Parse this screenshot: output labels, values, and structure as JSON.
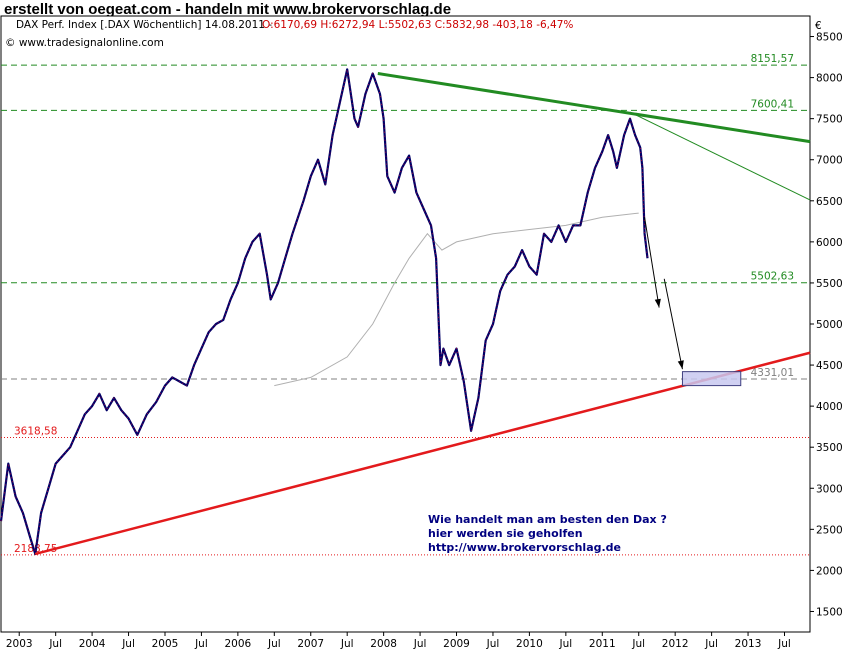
{
  "header": {
    "banner": "erstellt von oegeat.com - handeln mit www.brokervorschlag.de",
    "instrument": "DAX Perf. Index [.DAX  Wöchentlich]",
    "date": "14.08.2011",
    "ohlc": "O:6170,69 H:6272,94 L:5502,63 C:5832,98 -403,18 -6,47%",
    "credit": "© www.tradesignalonline.com",
    "currency": "€"
  },
  "annotation": {
    "line1": "Wie handelt man am besten  den Dax ?",
    "line2": "hier werden sie geholfen",
    "line3": "http://www.brokervorschlag.de"
  },
  "colors": {
    "price": "#000066",
    "down_candle": "#cc0033",
    "resistance": "#228b22",
    "support": "#e31a1c",
    "moving_average": "#b0b0b0",
    "target_box": "#c8c8f0"
  },
  "chart_data": {
    "type": "line",
    "x_unit": "year",
    "ylim": [
      1250,
      8750
    ],
    "xlim": [
      2002.75,
      2013.85
    ],
    "yticks": [
      1500,
      2000,
      2500,
      3000,
      3500,
      4000,
      4500,
      5000,
      5500,
      6000,
      6500,
      7000,
      7500,
      8000,
      8500
    ],
    "xticks": [
      {
        "x": 2003.0,
        "label": "2003"
      },
      {
        "x": 2003.5,
        "label": "Jul"
      },
      {
        "x": 2004.0,
        "label": "2004"
      },
      {
        "x": 2004.5,
        "label": "Jul"
      },
      {
        "x": 2005.0,
        "label": "2005"
      },
      {
        "x": 2005.5,
        "label": "Jul"
      },
      {
        "x": 2006.0,
        "label": "2006"
      },
      {
        "x": 2006.5,
        "label": "Jul"
      },
      {
        "x": 2007.0,
        "label": "2007"
      },
      {
        "x": 2007.5,
        "label": "Jul"
      },
      {
        "x": 2008.0,
        "label": "2008"
      },
      {
        "x": 2008.5,
        "label": "Jul"
      },
      {
        "x": 2009.0,
        "label": "2009"
      },
      {
        "x": 2009.5,
        "label": "Jul"
      },
      {
        "x": 2010.0,
        "label": "2010"
      },
      {
        "x": 2010.5,
        "label": "Jul"
      },
      {
        "x": 2011.0,
        "label": "2011"
      },
      {
        "x": 2011.5,
        "label": "Jul"
      },
      {
        "x": 2012.0,
        "label": "2012"
      },
      {
        "x": 2012.5,
        "label": "Jul"
      },
      {
        "x": 2013.0,
        "label": "2013"
      },
      {
        "x": 2013.5,
        "label": "Jul"
      }
    ],
    "grid": false,
    "series": [
      {
        "kind": "price",
        "points": [
          [
            2002.75,
            2600
          ],
          [
            2002.85,
            3300
          ],
          [
            2002.95,
            2900
          ],
          [
            2003.05,
            2700
          ],
          [
            2003.15,
            2400
          ],
          [
            2003.22,
            2200
          ],
          [
            2003.3,
            2700
          ],
          [
            2003.4,
            3000
          ],
          [
            2003.5,
            3300
          ],
          [
            2003.6,
            3400
          ],
          [
            2003.7,
            3500
          ],
          [
            2003.8,
            3700
          ],
          [
            2003.9,
            3900
          ],
          [
            2004.0,
            4000
          ],
          [
            2004.1,
            4150
          ],
          [
            2004.2,
            3950
          ],
          [
            2004.3,
            4100
          ],
          [
            2004.4,
            3950
          ],
          [
            2004.5,
            3850
          ],
          [
            2004.62,
            3650
          ],
          [
            2004.75,
            3900
          ],
          [
            2004.88,
            4050
          ],
          [
            2005.0,
            4250
          ],
          [
            2005.1,
            4350
          ],
          [
            2005.2,
            4300
          ],
          [
            2005.3,
            4250
          ],
          [
            2005.4,
            4500
          ],
          [
            2005.5,
            4700
          ],
          [
            2005.6,
            4900
          ],
          [
            2005.7,
            5000
          ],
          [
            2005.8,
            5050
          ],
          [
            2005.9,
            5300
          ],
          [
            2006.0,
            5500
          ],
          [
            2006.1,
            5800
          ],
          [
            2006.2,
            6000
          ],
          [
            2006.3,
            6100
          ],
          [
            2006.4,
            5600
          ],
          [
            2006.45,
            5300
          ],
          [
            2006.55,
            5500
          ],
          [
            2006.65,
            5800
          ],
          [
            2006.75,
            6100
          ],
          [
            2006.9,
            6500
          ],
          [
            2007.0,
            6800
          ],
          [
            2007.1,
            7000
          ],
          [
            2007.2,
            6700
          ],
          [
            2007.3,
            7300
          ],
          [
            2007.4,
            7700
          ],
          [
            2007.5,
            8100
          ],
          [
            2007.6,
            7500
          ],
          [
            2007.65,
            7400
          ],
          [
            2007.75,
            7800
          ],
          [
            2007.85,
            8050
          ],
          [
            2007.95,
            7800
          ],
          [
            2008.0,
            7500
          ],
          [
            2008.05,
            6800
          ],
          [
            2008.15,
            6600
          ],
          [
            2008.25,
            6900
          ],
          [
            2008.35,
            7050
          ],
          [
            2008.45,
            6600
          ],
          [
            2008.55,
            6400
          ],
          [
            2008.65,
            6200
          ],
          [
            2008.72,
            5800
          ],
          [
            2008.78,
            4500
          ],
          [
            2008.82,
            4700
          ],
          [
            2008.9,
            4500
          ],
          [
            2009.0,
            4700
          ],
          [
            2009.1,
            4300
          ],
          [
            2009.2,
            3700
          ],
          [
            2009.3,
            4100
          ],
          [
            2009.4,
            4800
          ],
          [
            2009.5,
            5000
          ],
          [
            2009.6,
            5400
          ],
          [
            2009.7,
            5600
          ],
          [
            2009.8,
            5700
          ],
          [
            2009.9,
            5900
          ],
          [
            2010.0,
            5700
          ],
          [
            2010.1,
            5600
          ],
          [
            2010.2,
            6100
          ],
          [
            2010.3,
            6000
          ],
          [
            2010.4,
            6200
          ],
          [
            2010.5,
            6000
          ],
          [
            2010.6,
            6200
          ],
          [
            2010.7,
            6200
          ],
          [
            2010.8,
            6600
          ],
          [
            2010.9,
            6900
          ],
          [
            2011.0,
            7100
          ],
          [
            2011.08,
            7300
          ],
          [
            2011.15,
            7100
          ],
          [
            2011.2,
            6900
          ],
          [
            2011.3,
            7300
          ],
          [
            2011.38,
            7500
          ],
          [
            2011.45,
            7300
          ],
          [
            2011.52,
            7150
          ],
          [
            2011.55,
            6900
          ],
          [
            2011.58,
            6100
          ],
          [
            2011.62,
            5800
          ]
        ]
      },
      {
        "kind": "moving_average",
        "points": [
          [
            2006.5,
            4250
          ],
          [
            2007.0,
            4350
          ],
          [
            2007.5,
            4600
          ],
          [
            2007.85,
            5000
          ],
          [
            2008.15,
            5500
          ],
          [
            2008.35,
            5800
          ],
          [
            2008.6,
            6100
          ],
          [
            2008.8,
            5900
          ],
          [
            2009.0,
            6000
          ],
          [
            2009.5,
            6100
          ],
          [
            2010.0,
            6150
          ],
          [
            2010.5,
            6200
          ],
          [
            2011.0,
            6300
          ],
          [
            2011.5,
            6350
          ]
        ]
      }
    ],
    "levels": [
      {
        "value": 8151.57,
        "label": "8151,57",
        "kind": "resistance"
      },
      {
        "value": 7600.41,
        "label": "7600,41",
        "kind": "resistance"
      },
      {
        "value": 5502.63,
        "label": "5502,63",
        "kind": "resistance"
      },
      {
        "value": 4331.01,
        "label": "4331,01",
        "kind": "neutral"
      },
      {
        "value": 3618.58,
        "label": "3618,58",
        "kind": "support"
      },
      {
        "value": 2188.75,
        "label": "2188,75",
        "kind": "support"
      }
    ],
    "trendlines": [
      {
        "kind": "resistance",
        "width": 3,
        "from": [
          2007.92,
          8050
        ],
        "to": [
          2013.85,
          7220
        ]
      },
      {
        "kind": "resistance",
        "width": 1,
        "from": [
          2011.38,
          7580
        ],
        "to": [
          2013.85,
          6510
        ]
      },
      {
        "kind": "support",
        "width": 2.5,
        "from": [
          2003.22,
          2200
        ],
        "to": [
          2013.85,
          4650
        ]
      }
    ],
    "arrows": [
      {
        "from": [
          2011.58,
          6300
        ],
        "to": [
          2011.78,
          5200
        ]
      },
      {
        "from": [
          2011.85,
          5550
        ],
        "to": [
          2012.1,
          4450
        ]
      }
    ],
    "target_box": {
      "x0": 2012.1,
      "x1": 2012.9,
      "y0": 4250,
      "y1": 4420
    }
  }
}
